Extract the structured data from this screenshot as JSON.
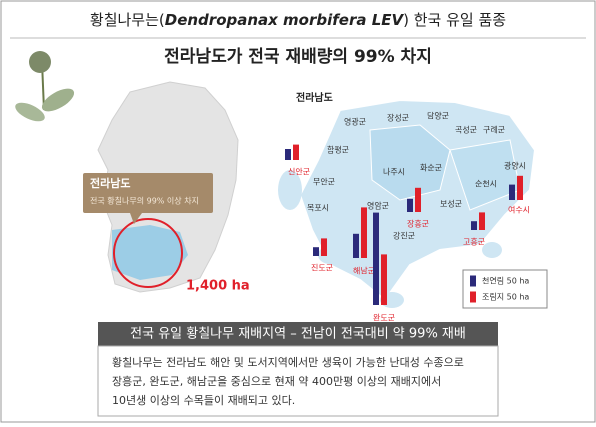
{
  "header": {
    "title_before": "황칠나무는(",
    "title_species": "Dendropanax morbifera LEV",
    "title_after": ") 한국 유일 품종",
    "subtitle": "전라남도가 전국 재배량의 99% 차지"
  },
  "left_map": {
    "callout_title": "전라남도",
    "callout_text": "전국 황칠나무의 99% 이상 차지",
    "area_label": "1,400 ha"
  },
  "right_map": {
    "title": "전라남도",
    "districts": [
      "영광군",
      "장성군",
      "담양군",
      "곡성군",
      "구례군",
      "함평군",
      "광양시",
      "나주시",
      "화순군",
      "무안군",
      "순천시",
      "목포시",
      "영암군",
      "보성군",
      "강진군"
    ],
    "legend": [
      {
        "name": "천연림 50 ha",
        "value": 50,
        "color": "#2b2a7a"
      },
      {
        "name": "조림지 50 ha",
        "value": 50,
        "color": "#e0202a"
      }
    ],
    "regions": [
      {
        "name": "신안군",
        "natural": 50,
        "planted": 70
      },
      {
        "name": "진도군",
        "natural": 40,
        "planted": 80
      },
      {
        "name": "해남군",
        "natural": 110,
        "planted": 230
      },
      {
        "name": "완도군",
        "natural": 420,
        "planted": 230
      },
      {
        "name": "장흥군",
        "natural": 60,
        "planted": 110
      },
      {
        "name": "고흥군",
        "natural": 40,
        "planted": 80
      },
      {
        "name": "여수시",
        "natural": 70,
        "planted": 110
      }
    ]
  },
  "banner": "전국 유일 황칠나무 재배지역 – 전남이 전국대비 약 99% 재배",
  "description": [
    "황칠나무는 전라남도 해안 및 도서지역에서만 생육이 가능한 난대성 수종으로",
    "장흥군, 완도군, 해남군을 중심으로 현재 약 400만평 이상의 재배지에서",
    "10년생 이상의 수목들이 재배되고 있다."
  ]
}
